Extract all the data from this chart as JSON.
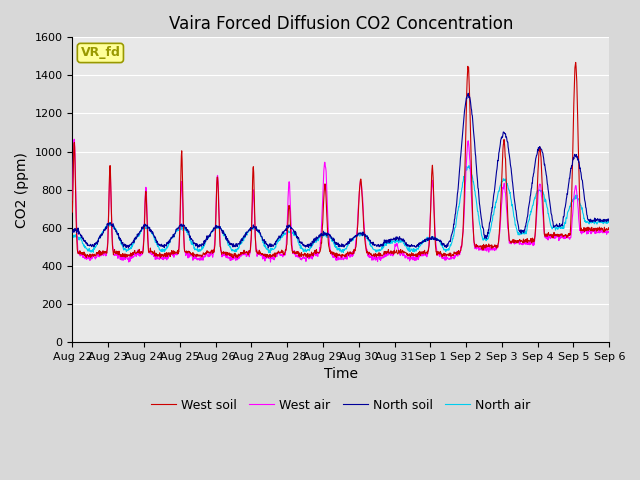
{
  "title": "Vaira Forced Diffusion CO2 Concentration",
  "xlabel": "Time",
  "ylabel": "CO2 (ppm)",
  "ylim": [
    0,
    1600
  ],
  "yticks": [
    0,
    200,
    400,
    600,
    800,
    1000,
    1200,
    1400,
    1600
  ],
  "x_tick_labels": [
    "Aug 22",
    "Aug 23",
    "Aug 24",
    "Aug 25",
    "Aug 26",
    "Aug 27",
    "Aug 28",
    "Aug 29",
    "Aug 30",
    "Aug 31",
    "Sep 1",
    "Sep 2",
    "Sep 3",
    "Sep 4",
    "Sep 5",
    "Sep 6"
  ],
  "colors": {
    "west_soil": "#cc0000",
    "west_air": "#ff00ff",
    "north_soil": "#000099",
    "north_air": "#00ccee"
  },
  "legend_labels": [
    "West soil",
    "West air",
    "North soil",
    "North air"
  ],
  "label_tag": "VR_fd",
  "label_tag_bg": "#ffff99",
  "label_tag_border": "#999900",
  "background_color": "#e8e8e8",
  "grid_color": "#ffffff",
  "title_fontsize": 12,
  "axis_fontsize": 10,
  "tick_fontsize": 8,
  "legend_fontsize": 9
}
